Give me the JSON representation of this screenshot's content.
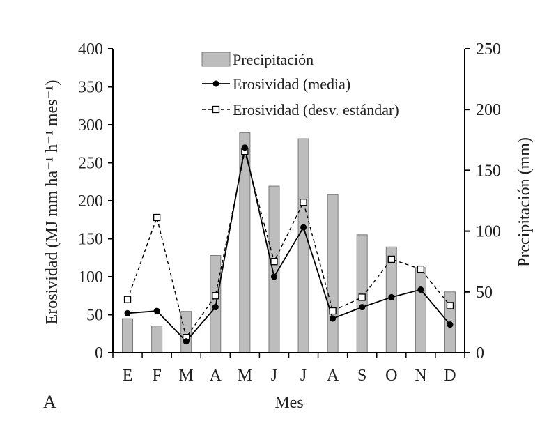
{
  "panel_label": "A",
  "chart_data": {
    "type": "bar",
    "categories": [
      "E",
      "F",
      "M",
      "A",
      "M",
      "J",
      "J",
      "A",
      "S",
      "O",
      "N",
      "D"
    ],
    "xlabel": "Mes",
    "ylabel_left": "Erosividad (MJ mm ha⁻¹ h⁻¹ mes⁻¹)",
    "ylabel_right": "Precipitación (mm)",
    "ylim_left": [
      0,
      400
    ],
    "yticks_left": [
      0,
      50,
      100,
      150,
      200,
      250,
      300,
      350,
      400
    ],
    "ylim_right": [
      0,
      250
    ],
    "yticks_right": [
      0,
      50,
      100,
      150,
      200,
      250
    ],
    "legend_position": "top-center",
    "grid": false,
    "series": [
      {
        "name": "Precipitación",
        "type": "bar",
        "axis": "right",
        "color": "#bdbdbd",
        "edge_color": "#7a7a7a",
        "values": [
          28,
          22,
          34,
          80,
          181,
          137,
          176,
          130,
          97,
          87,
          70,
          50
        ]
      },
      {
        "name": "Erosividad (media)",
        "type": "line",
        "axis": "left",
        "line_style": "solid",
        "marker": "filled-circle",
        "color": "#000000",
        "values": [
          52,
          55,
          15,
          60,
          270,
          100,
          165,
          45,
          60,
          73,
          83,
          37
        ]
      },
      {
        "name": "Erosividad (desv. estándar)",
        "type": "line",
        "axis": "left",
        "line_style": "dashed",
        "marker": "open-square",
        "color": "#000000",
        "values": [
          70,
          178,
          20,
          75,
          265,
          120,
          198,
          55,
          73,
          123,
          110,
          62
        ]
      }
    ]
  }
}
